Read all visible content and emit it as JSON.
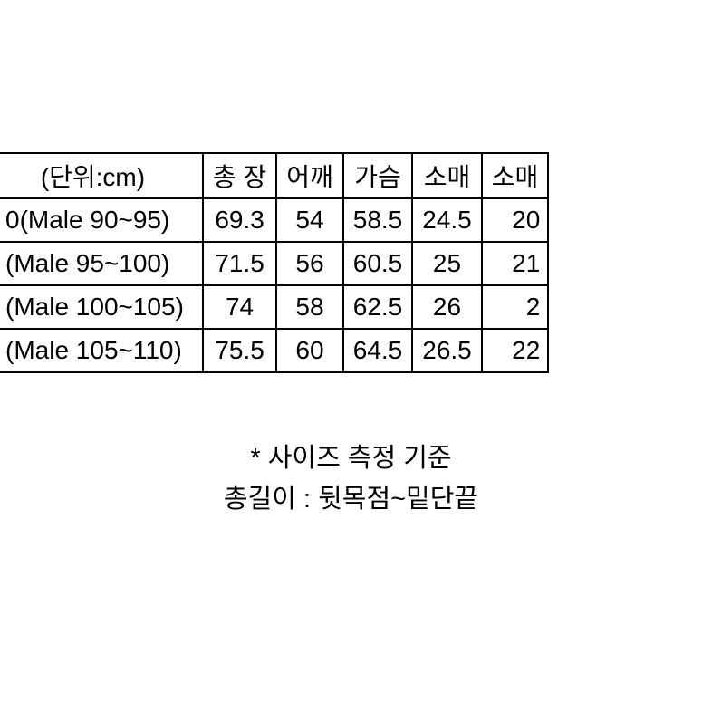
{
  "table": {
    "headers": {
      "unit": "(단위:cm)",
      "col1": "총 장",
      "col2": "어깨",
      "col3": "가슴",
      "col4": "소매",
      "col5": "소매"
    },
    "rows": [
      {
        "label": "0(Male 90~95)",
        "v1": "69.3",
        "v2": "54",
        "v3": "58.5",
        "v4": "24.5",
        "v5": "20"
      },
      {
        "label": "(Male 95~100)",
        "v1": "71.5",
        "v2": "56",
        "v3": "60.5",
        "v4": "25",
        "v5": "21"
      },
      {
        "label": "(Male 100~105)",
        "v1": "74",
        "v2": "58",
        "v3": "62.5",
        "v4": "26",
        "v5": "2"
      },
      {
        "label": "(Male 105~110)",
        "v1": "75.5",
        "v2": "60",
        "v3": "64.5",
        "v4": "26.5",
        "v5": "22"
      }
    ]
  },
  "footer": {
    "line1": "* 사이즈 측정 기준",
    "line2": "총길이 : 뒷목점~밑단끝"
  },
  "style": {
    "background_color": "#ffffff",
    "border_color": "#000000",
    "text_color": "#000000",
    "font_size_table": 28,
    "font_size_footer": 29
  }
}
